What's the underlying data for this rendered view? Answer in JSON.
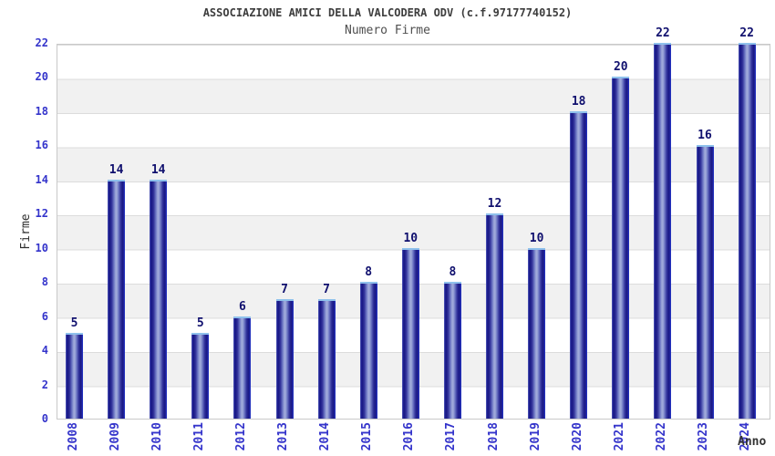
{
  "header": {
    "title": "ASSOCIAZIONE AMICI DELLA VALCODERA ODV (c.f.97177740152)",
    "subtitle": "Numero Firme"
  },
  "chart_data": {
    "type": "bar",
    "title": "ASSOCIAZIONE AMICI DELLA VALCODERA ODV (c.f.97177740152)",
    "subtitle": "Numero Firme",
    "categories": [
      "2008",
      "2009",
      "2010",
      "2011",
      "2012",
      "2013",
      "2014",
      "2015",
      "2016",
      "2017",
      "2018",
      "2019",
      "2020",
      "2021",
      "2022",
      "2023",
      "2024"
    ],
    "values": [
      5,
      14,
      14,
      5,
      6,
      7,
      7,
      8,
      10,
      8,
      12,
      10,
      18,
      20,
      22,
      16,
      22
    ],
    "xlabel": "Anno",
    "ylabel": "Firme",
    "ylim": [
      0,
      22
    ],
    "ytick_step": 2,
    "yticks": [
      0,
      2,
      4,
      6,
      8,
      10,
      12,
      14,
      16,
      18,
      20,
      22
    ],
    "grid": "horizontal-bands",
    "legend_position": "none",
    "bar_labels_shown": true
  },
  "colors": {
    "background": "#ffffff",
    "band_gray": "#f1f1f1",
    "gridline": "#dcdcdc",
    "plot_border": "#c9c9c9",
    "bar_dark": "#181884",
    "bar_light": "#9fa9da",
    "bar_cap": "#8fc1ec",
    "bar_edge_right": "#2036cf",
    "tick_label_blue": "#3434cb",
    "value_label_navy": "#10106e",
    "title_gray": "#3d3d3d",
    "subtitle_gray": "#4f4f4f",
    "axis_title_dark": "#2e2e2e"
  }
}
